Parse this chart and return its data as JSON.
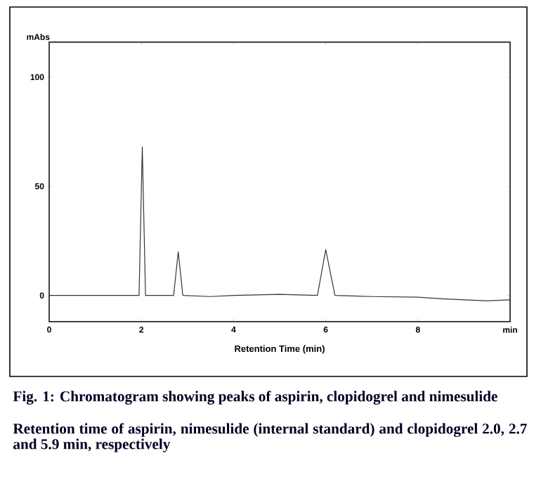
{
  "chart_data": {
    "type": "line",
    "xlabel": "Retention Time (min)",
    "ylabel": "mAbs",
    "x": [
      0,
      0.5,
      1,
      1.5,
      1.95,
      2.02,
      2.09,
      2.5,
      2.7,
      2.8,
      2.9,
      3.5,
      4,
      5,
      5.82,
      6.0,
      6.2,
      7,
      8,
      8.5,
      9,
      9.5,
      10
    ],
    "series": [
      {
        "color": "#333333",
        "values": [
          0,
          0,
          0,
          0,
          0,
          68,
          0,
          0,
          0,
          20,
          0,
          -0.5,
          0,
          0.5,
          0,
          21,
          0,
          -0.5,
          -0.8,
          -1.5,
          -2,
          -2.5,
          -2
        ]
      }
    ],
    "xlim": [
      0,
      10
    ],
    "ylim": [
      -12,
      116
    ],
    "xticks": [
      0,
      2,
      4,
      6,
      8,
      {
        "value": 10,
        "label": "min"
      }
    ],
    "yticks": [
      0,
      50,
      100
    ],
    "annotations": [
      "Fig. 1: Chromatogram showing peaks of aspirin, clopidogrel and nimesulide",
      "Retention time of aspirin, nimesulide (internal standard) and clopidogrel 2.0, 2.7 and 5.9 min, respectively"
    ]
  }
}
